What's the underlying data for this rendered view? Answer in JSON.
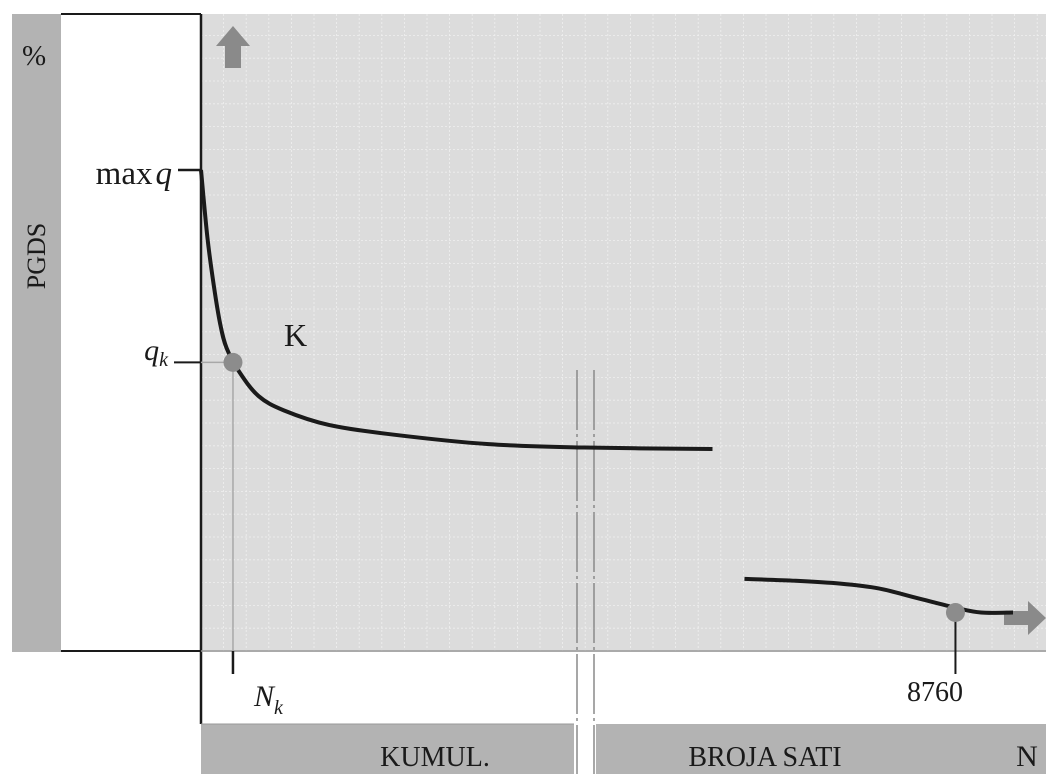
{
  "chart_data": {
    "type": "line",
    "title": "",
    "ylabel": "PGDS",
    "y_unit": "%",
    "xlabel_parts": [
      "KUMUL.",
      "BROJA SATI",
      "N"
    ],
    "x_tick_labels": [
      {
        "label": "N",
        "subscript": "k",
        "italic": true
      },
      {
        "label": "8760",
        "italic": false
      }
    ],
    "y_tick_labels": [
      {
        "label": "max",
        "symbol": "q"
      },
      {
        "label": "q",
        "subscript": "k",
        "italic": true
      }
    ],
    "annotations": [
      {
        "label": "K",
        "point": "knee"
      }
    ],
    "grid": true,
    "axis_break": true,
    "series": [
      {
        "segments": [
          [
            [
              0,
              100
            ],
            [
              1,
              86
            ],
            [
              2,
              76
            ],
            [
              3,
              68
            ],
            [
              4,
              63
            ],
            [
              6,
              58
            ],
            [
              9,
              53
            ],
            [
              13,
              50
            ],
            [
              20,
              47
            ],
            [
              30,
              45
            ],
            [
              45,
              43
            ],
            [
              60,
              42.3
            ],
            [
              80,
              42
            ]
          ],
          [
            [
              85,
              15
            ],
            [
              93,
              14.6
            ],
            [
              100,
              14
            ],
            [
              106,
              13
            ],
            [
              112,
              11
            ],
            [
              118,
              9
            ],
            [
              122,
              8
            ],
            [
              127,
              8
            ]
          ]
        ]
      }
    ],
    "key_points": [
      {
        "name": "K",
        "x": 5,
        "y": 60
      },
      {
        "name": "8760",
        "x": 118,
        "y": 8
      }
    ]
  },
  "colors": {
    "plot_bg": "#dcdcdc",
    "grid": "#f0f0f0",
    "axis_bar": "#b3b3b3",
    "curve": "#1a1a1a",
    "marker": "#8c8c8c",
    "arrow": "#8a8a8a"
  },
  "icons": [
    "up-arrow-icon",
    "right-arrow-icon"
  ]
}
